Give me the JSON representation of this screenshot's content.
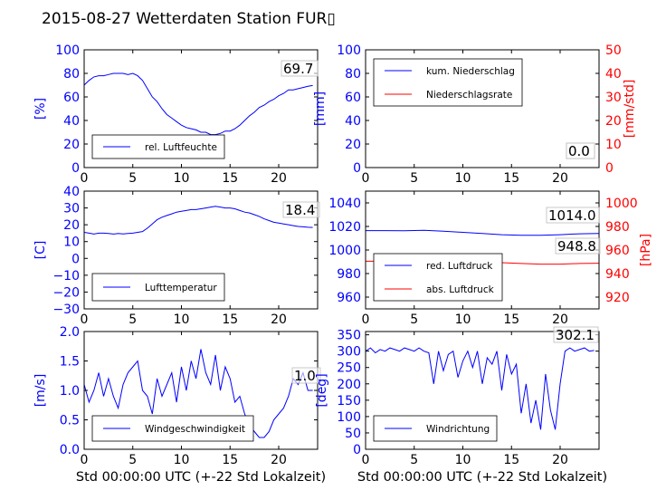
{
  "figure": {
    "title": "2015-08-27 Wetterdaten Station FUR▯"
  },
  "colors": {
    "left_axis": "#0000ff",
    "right_axis": "#ff0000",
    "series_1": "#0000ff",
    "series_2": "#ff0000",
    "axes": "#000000"
  },
  "chart_data": [
    {
      "type": "line",
      "title": "",
      "xlabel": "",
      "ylabel": "[%]",
      "xlim": [
        0,
        24
      ],
      "ylim": [
        0,
        100
      ],
      "xticks": [
        0,
        5,
        10,
        15,
        20
      ],
      "yticks": [
        0,
        20,
        40,
        60,
        80,
        100
      ],
      "legend": {
        "location": "lower-left",
        "entries": [
          "rel. Luftfeuchte"
        ]
      },
      "annotation": "69.7",
      "series": [
        {
          "name": "rel. Luftfeuchte",
          "axis": "left",
          "color": "blue",
          "x": [
            0,
            0.5,
            1,
            1.5,
            2,
            2.5,
            3,
            3.5,
            4,
            4.5,
            5,
            5.5,
            6,
            6.5,
            7,
            7.5,
            8,
            8.5,
            9,
            9.5,
            10,
            10.5,
            11,
            11.5,
            12,
            12.5,
            13,
            13.5,
            14,
            14.5,
            15,
            15.5,
            16,
            16.5,
            17,
            17.5,
            18,
            18.5,
            19,
            19.5,
            20,
            20.5,
            21,
            21.5,
            22,
            22.5,
            23,
            23.5
          ],
          "y": [
            70,
            74,
            77,
            78,
            78,
            79,
            80,
            80,
            80,
            79,
            80,
            78,
            74,
            67,
            60,
            56,
            50,
            45,
            42,
            39,
            36,
            34,
            33,
            32,
            30,
            30,
            28,
            28,
            29,
            31,
            31,
            33,
            36,
            40,
            44,
            47,
            51,
            53,
            56,
            58,
            61,
            63,
            66,
            66,
            67,
            68,
            69,
            69.7
          ]
        }
      ]
    },
    {
      "type": "line",
      "title": "",
      "xlabel": "",
      "ylabel": "[mm]",
      "ylabel_right": "[mm/std]",
      "xlim": [
        0,
        24
      ],
      "ylim": [
        0,
        100
      ],
      "ylim_right": [
        0,
        50
      ],
      "xticks": [
        0,
        5,
        10,
        15,
        20
      ],
      "yticks": [
        0,
        20,
        40,
        60,
        80,
        100
      ],
      "yticks_right": [
        0,
        10,
        20,
        30,
        40,
        50
      ],
      "legend": {
        "location": "upper-left",
        "entries": [
          "kum. Niederschlag",
          "Niederschlagsrate"
        ]
      },
      "annotation": "0.0",
      "annotation_2": "0.0",
      "series": [
        {
          "name": "kum. Niederschlag",
          "axis": "left",
          "color": "blue",
          "x": [
            0,
            24
          ],
          "y": [
            0,
            0
          ]
        },
        {
          "name": "Niederschlagsrate",
          "axis": "right",
          "color": "red",
          "x": [
            0,
            24
          ],
          "y": [
            0,
            0
          ]
        }
      ]
    },
    {
      "type": "line",
      "title": "",
      "xlabel": "",
      "ylabel": "[C]",
      "xlim": [
        0,
        24
      ],
      "ylim": [
        -30,
        40
      ],
      "xticks": [
        0,
        5,
        10,
        15,
        20
      ],
      "yticks": [
        -30,
        -20,
        -10,
        0,
        10,
        20,
        30,
        40
      ],
      "legend": {
        "location": "lower-left",
        "entries": [
          "Lufttemperatur"
        ]
      },
      "annotation": "18.4",
      "series": [
        {
          "name": "Lufttemperatur",
          "axis": "left",
          "color": "blue",
          "x": [
            0,
            0.5,
            1,
            1.5,
            2,
            2.5,
            3,
            3.5,
            4,
            4.5,
            5,
            5.5,
            6,
            6.5,
            7,
            7.5,
            8,
            8.5,
            9,
            9.5,
            10,
            10.5,
            11,
            11.5,
            12,
            12.5,
            13,
            13.5,
            14,
            14.5,
            15,
            15.5,
            16,
            16.5,
            17,
            17.5,
            18,
            18.5,
            19,
            19.5,
            20,
            20.5,
            21,
            21.5,
            22,
            22.5,
            23,
            23.5
          ],
          "y": [
            15.5,
            15,
            14.5,
            15,
            15,
            14.8,
            14.5,
            14.8,
            14.6,
            14.8,
            15,
            15.5,
            16,
            18,
            20.5,
            23,
            24.5,
            25.5,
            26.5,
            27.5,
            28,
            28.5,
            29,
            29,
            29.5,
            30,
            30.5,
            31,
            30.5,
            30,
            30,
            29.5,
            28.5,
            27.5,
            27,
            26,
            25,
            23.5,
            22.5,
            21.5,
            21,
            20.5,
            20,
            19.5,
            19,
            18.8,
            18.5,
            18.4
          ]
        }
      ]
    },
    {
      "type": "line",
      "title": "",
      "xlabel": "",
      "ylabel_right": "[hPa]",
      "xlim": [
        0,
        24
      ],
      "ylim": [
        950,
        1050
      ],
      "ylim_right": [
        910,
        1010
      ],
      "xticks": [
        0,
        5,
        10,
        15,
        20
      ],
      "yticks": [
        960,
        980,
        1000,
        1020,
        1040
      ],
      "yticks_right": [
        920,
        940,
        960,
        980,
        1000
      ],
      "legend": {
        "location": "lower-left",
        "entries": [
          "red. Luftdruck",
          "abs. Luftdruck"
        ]
      },
      "annotation": "1014.0",
      "annotation_2": "948.8",
      "series": [
        {
          "name": "red. Luftdruck",
          "axis": "left",
          "color": "blue",
          "x": [
            0,
            2,
            4,
            6,
            8,
            10,
            12,
            14,
            16,
            18,
            20,
            22,
            24
          ],
          "y": [
            1016.5,
            1016.5,
            1016.3,
            1016.8,
            1016,
            1015,
            1014,
            1013,
            1012.5,
            1012.5,
            1013,
            1013.8,
            1014
          ]
        },
        {
          "name": "abs. Luftdruck",
          "axis": "right",
          "color": "red",
          "x": [
            0,
            2,
            4,
            6,
            8,
            10,
            12,
            14,
            16,
            18,
            20,
            22,
            24
          ],
          "y": [
            950.5,
            950.5,
            950.7,
            951.2,
            950.8,
            950,
            949.7,
            949.2,
            948.5,
            948,
            948,
            948.5,
            948.8
          ]
        }
      ]
    },
    {
      "type": "line",
      "title": "",
      "xlabel": "Std 00:00:00 UTC (+-22 Std Lokalzeit)",
      "ylabel": "[m/s]",
      "xlim": [
        0,
        24
      ],
      "ylim": [
        0,
        2
      ],
      "xticks": [
        0,
        5,
        10,
        15,
        20
      ],
      "yticks": [
        0.0,
        0.5,
        1.0,
        1.5,
        2.0
      ],
      "legend": {
        "location": "lower-left",
        "entries": [
          "Windgeschwindigkeit"
        ]
      },
      "annotation": "1.0",
      "series": [
        {
          "name": "Windgeschwindigkeit",
          "axis": "left",
          "color": "blue",
          "x": [
            0,
            0.5,
            1,
            1.5,
            2,
            2.5,
            3,
            3.5,
            4,
            4.5,
            5,
            5.5,
            6,
            6.5,
            7,
            7.5,
            8,
            8.5,
            9,
            9.5,
            10,
            10.5,
            11,
            11.5,
            12,
            12.5,
            13,
            13.5,
            14,
            14.5,
            15,
            15.5,
            16,
            16.5,
            17,
            17.5,
            18,
            18.5,
            19,
            19.5,
            20,
            20.5,
            21,
            21.5,
            22,
            22.5,
            23,
            23.5
          ],
          "y": [
            1.1,
            0.8,
            1.0,
            1.3,
            0.9,
            1.2,
            0.9,
            0.7,
            1.1,
            1.3,
            1.4,
            1.5,
            1.0,
            0.9,
            0.6,
            1.2,
            0.9,
            1.1,
            1.3,
            0.8,
            1.4,
            1.0,
            1.5,
            1.2,
            1.7,
            1.3,
            1.1,
            1.6,
            1.0,
            1.4,
            1.2,
            0.8,
            0.9,
            0.6,
            0.4,
            0.3,
            0.2,
            0.2,
            0.3,
            0.5,
            0.6,
            0.7,
            0.9,
            1.2,
            1.1,
            1.3,
            1.0,
            1.0
          ]
        }
      ]
    },
    {
      "type": "line",
      "title": "",
      "xlabel": "Std 00:00:00 UTC (+-22 Std Lokalzeit)",
      "ylabel": "[deg]",
      "xlim": [
        0,
        24
      ],
      "ylim": [
        0,
        360
      ],
      "xticks": [
        0,
        5,
        10,
        15,
        20
      ],
      "yticks": [
        0,
        50,
        100,
        150,
        200,
        250,
        300,
        350
      ],
      "legend": {
        "location": "lower-left",
        "entries": [
          "Windrichtung"
        ]
      },
      "annotation": "302.1",
      "series": [
        {
          "name": "Windrichtung",
          "axis": "left",
          "color": "blue",
          "x": [
            0,
            0.5,
            1,
            1.5,
            2,
            2.5,
            3,
            3.5,
            4,
            4.5,
            5,
            5.5,
            6,
            6.5,
            7,
            7.5,
            8,
            8.5,
            9,
            9.5,
            10,
            10.5,
            11,
            11.5,
            12,
            12.5,
            13,
            13.5,
            14,
            14.5,
            15,
            15.5,
            16,
            16.5,
            17,
            17.5,
            18,
            18.5,
            19,
            19.5,
            20,
            20.5,
            21,
            21.5,
            22,
            22.5,
            23,
            23.5
          ],
          "y": [
            300,
            310,
            295,
            305,
            300,
            310,
            305,
            300,
            310,
            305,
            300,
            310,
            300,
            295,
            200,
            300,
            240,
            290,
            300,
            220,
            270,
            300,
            250,
            300,
            200,
            280,
            260,
            300,
            180,
            290,
            230,
            260,
            110,
            200,
            80,
            150,
            60,
            230,
            120,
            60,
            200,
            300,
            310,
            300,
            305,
            310,
            300,
            302
          ]
        }
      ]
    }
  ]
}
